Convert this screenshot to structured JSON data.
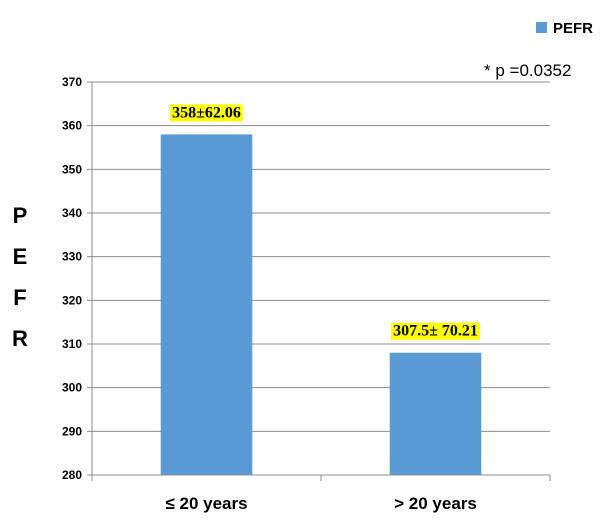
{
  "chart_data": {
    "type": "bar",
    "categories": [
      "≤ 20 years",
      "> 20 years"
    ],
    "values": [
      358,
      308
    ],
    "data_labels": [
      "358±62.06",
      "307.5± 70.21"
    ],
    "series": [
      {
        "name": "PEFR",
        "values": [
          358,
          308
        ]
      }
    ],
    "title": "",
    "xlabel": "",
    "ylabel": "PEFR",
    "ylim": [
      280,
      370
    ],
    "yticks": [
      280,
      290,
      300,
      310,
      320,
      330,
      340,
      350,
      360,
      370
    ],
    "grid": true,
    "legend": "top-right",
    "annotation": "* p =0.0352",
    "colors": {
      "bar": "#5b9bd5",
      "data_label_background": "#ffff00",
      "grid": "#8c8c8c",
      "axis": "#8c8c8c"
    }
  }
}
